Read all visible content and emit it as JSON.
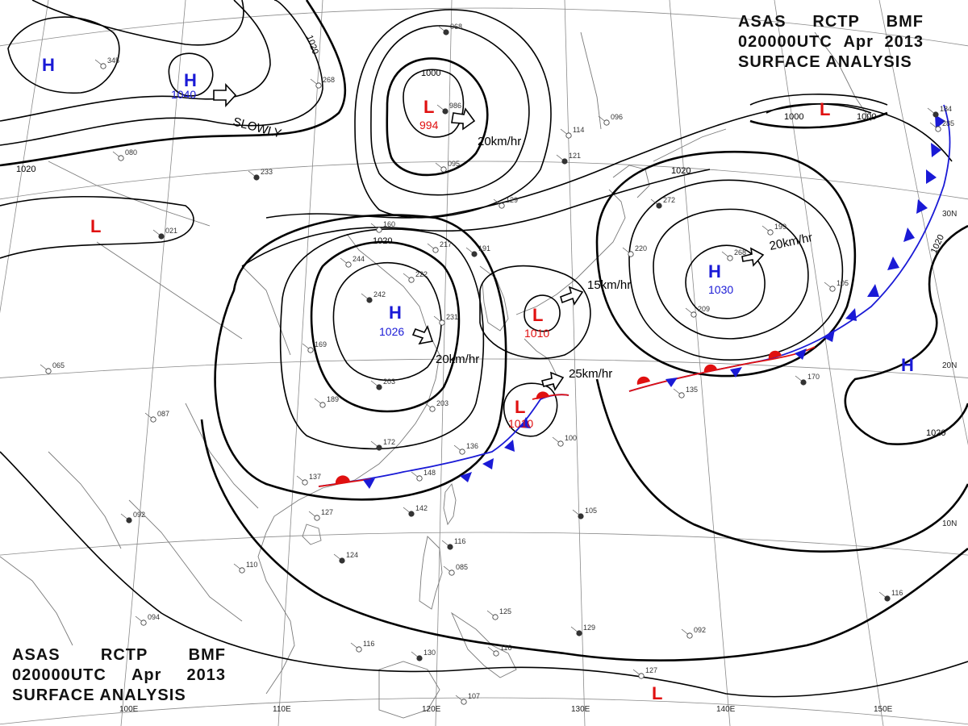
{
  "header": {
    "line1": [
      "ASAS",
      "RCTP",
      "BMF"
    ],
    "line2": [
      "020000UTC",
      "Apr",
      "2013"
    ],
    "line3": "SURFACE ANALYSIS"
  },
  "colors": {
    "high": "#1a1ad6",
    "low": "#e01010",
    "cold_front": "#1a1ad6",
    "warm_front": "#e01010",
    "isobar": "#000000",
    "grid": "#8a8a8a",
    "coast": "#7a7a7a"
  },
  "pressure_centers": [
    {
      "type": "H",
      "value": "1040"
    },
    {
      "type": "H",
      "value": ""
    },
    {
      "type": "L",
      "value": "994"
    },
    {
      "type": "L",
      "value": ""
    },
    {
      "type": "H",
      "value": "1026"
    },
    {
      "type": "L",
      "value": "1010"
    },
    {
      "type": "L",
      "value": "1010"
    },
    {
      "type": "H",
      "value": "1030"
    },
    {
      "type": "L",
      "value": ""
    },
    {
      "type": "H",
      "value": ""
    },
    {
      "type": "L",
      "value": ""
    }
  ],
  "isobar_labels": [
    "1020",
    "1020",
    "1000",
    "1020",
    "1020",
    "1000",
    "1000",
    "1020",
    "1020",
    "1020"
  ],
  "movement_labels": [
    "SLOWLY",
    "20km/hr",
    "15km/hr",
    "20km/hr",
    "20km/hr",
    "25km/hr"
  ],
  "longitude_labels": [
    "110E",
    "120E",
    "130E",
    "140E",
    "150E",
    "100E"
  ],
  "latitude_labels": [
    "30N",
    "20N",
    "10N"
  ],
  "station_numbers": [
    "068",
    "345",
    "268",
    "986",
    "096",
    "114",
    "121",
    "129",
    "080",
    "233",
    "160",
    "217",
    "191",
    "244",
    "222",
    "242",
    "231",
    "169",
    "203",
    "189",
    "203",
    "172",
    "136",
    "148",
    "142",
    "137",
    "127",
    "124",
    "110",
    "094",
    "116",
    "085",
    "125",
    "129",
    "116",
    "107",
    "105",
    "100",
    "135",
    "170",
    "199",
    "268",
    "272",
    "220",
    "209",
    "130",
    "116",
    "095",
    "021",
    "065",
    "087",
    "092",
    "092",
    "127",
    "116",
    "285",
    "105",
    "184"
  ]
}
